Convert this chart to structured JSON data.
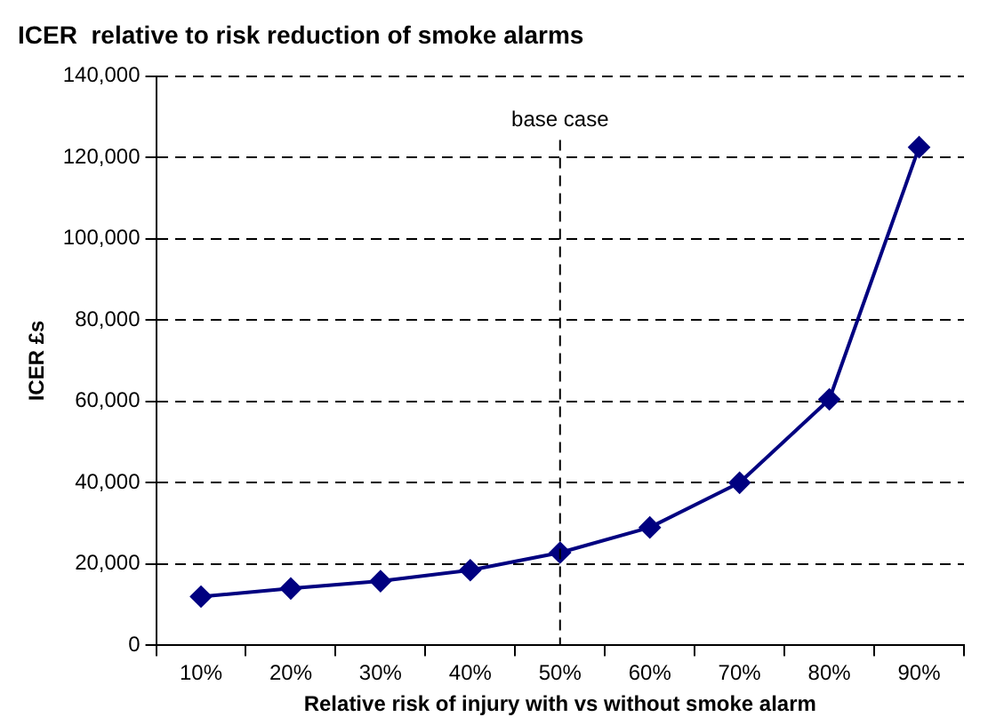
{
  "chart_data": {
    "type": "line",
    "title": "ICER  relative to risk reduction of smoke alarms",
    "xlabel": "Relative risk of injury with vs without smoke alarm",
    "ylabel": "ICER £s",
    "categories": [
      "10%",
      "20%",
      "30%",
      "40%",
      "50%",
      "60%",
      "70%",
      "80%",
      "90%"
    ],
    "series": [
      {
        "color": "#000080",
        "values": [
          12000,
          14000,
          15800,
          18500,
          22800,
          29000,
          40000,
          60500,
          122500
        ]
      }
    ],
    "ylim": [
      0,
      140000
    ],
    "yticks": [
      0,
      {
        "value": 20000,
        "label": "20,000"
      },
      {
        "value": 40000,
        "label": "40,000"
      },
      {
        "value": 60000,
        "label": "60,000"
      },
      {
        "value": 80000,
        "label": "80,000"
      },
      {
        "value": 100000,
        "label": "100,000"
      },
      {
        "value": 120000,
        "label": "120,000"
      },
      {
        "value": 140000,
        "label": "140,000"
      }
    ],
    "ref_lines": [
      {
        "axis": "x",
        "value": "50%",
        "label": "base case",
        "color": "#000000",
        "line_style": "dashed"
      }
    ],
    "grid": "y",
    "legend": false,
    "marker": "diamond",
    "line_style": "solid"
  }
}
